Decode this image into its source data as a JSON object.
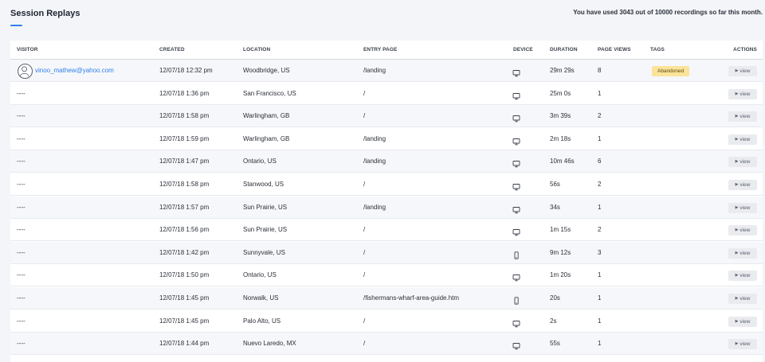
{
  "header": {
    "title": "Session Replays",
    "usage_note": "You have used 3043 out of 10000 recordings so far this month."
  },
  "table": {
    "columns": [
      "VISITOR",
      "CREATED",
      "LOCATION",
      "ENTRY PAGE",
      "DEVICE",
      "DURATION",
      "PAGE VIEWS",
      "TAGS",
      "ACTIONS"
    ],
    "view_label": "view",
    "rows": [
      {
        "visitor": "vinoo_mathew@yahoo.com",
        "has_avatar": true,
        "created": "12/07/18 12:32 pm",
        "location": "Woodbridge, US",
        "entry_page": "/landing",
        "device": "desktop-icon",
        "duration": "29m 29s",
        "page_views": "8",
        "tag": "Abandoned"
      },
      {
        "visitor": "----",
        "created": "12/07/18 1:36 pm",
        "location": "San Francisco, US",
        "entry_page": "/",
        "device": "desktop-icon",
        "duration": "25m 0s",
        "page_views": "1",
        "tag": ""
      },
      {
        "visitor": "----",
        "created": "12/07/18 1:58 pm",
        "location": "Warlingham, GB",
        "entry_page": "/",
        "device": "desktop-icon",
        "duration": "3m 39s",
        "page_views": "2",
        "tag": ""
      },
      {
        "visitor": "----",
        "created": "12/07/18 1:59 pm",
        "location": "Warlingham, GB",
        "entry_page": "/landing",
        "device": "desktop-icon",
        "duration": "2m 18s",
        "page_views": "1",
        "tag": ""
      },
      {
        "visitor": "----",
        "created": "12/07/18 1:47 pm",
        "location": "Ontario, US",
        "entry_page": "/landing",
        "device": "desktop-icon",
        "duration": "10m 46s",
        "page_views": "6",
        "tag": ""
      },
      {
        "visitor": "----",
        "created": "12/07/18 1:58 pm",
        "location": "Stanwood, US",
        "entry_page": "/",
        "device": "desktop-icon",
        "duration": "56s",
        "page_views": "2",
        "tag": ""
      },
      {
        "visitor": "----",
        "created": "12/07/18 1:57 pm",
        "location": "Sun Prairie, US",
        "entry_page": "/landing",
        "device": "desktop-icon",
        "duration": "34s",
        "page_views": "1",
        "tag": ""
      },
      {
        "visitor": "----",
        "created": "12/07/18 1:56 pm",
        "location": "Sun Prairie, US",
        "entry_page": "/",
        "device": "desktop-icon",
        "duration": "1m 15s",
        "page_views": "2",
        "tag": ""
      },
      {
        "visitor": "----",
        "created": "12/07/18 1:42 pm",
        "location": "Sunnyvale, US",
        "entry_page": "/",
        "device": "mobile-icon",
        "duration": "9m 12s",
        "page_views": "3",
        "tag": ""
      },
      {
        "visitor": "----",
        "created": "12/07/18 1:50 pm",
        "location": "Ontario, US",
        "entry_page": "/",
        "device": "desktop-icon",
        "duration": "1m 20s",
        "page_views": "1",
        "tag": ""
      },
      {
        "visitor": "----",
        "created": "12/07/18 1:45 pm",
        "location": "Norwalk, US",
        "entry_page": "/fishermans-wharf-area-guide.htm",
        "device": "mobile-icon",
        "duration": "20s",
        "page_views": "1",
        "tag": ""
      },
      {
        "visitor": "----",
        "created": "12/07/18 1:45 pm",
        "location": "Palo Alto, US",
        "entry_page": "/",
        "device": "desktop-icon",
        "duration": "2s",
        "page_views": "1",
        "tag": ""
      },
      {
        "visitor": "----",
        "created": "12/07/18 1:44 pm",
        "location": "Nuevo Laredo, MX",
        "entry_page": "/",
        "device": "desktop-icon",
        "duration": "55s",
        "page_views": "1",
        "tag": ""
      }
    ]
  },
  "colors": {
    "accent": "#2f80ed",
    "tag_abandoned_bg": "#fbe39a",
    "page_bg": "#f3f5f9"
  }
}
